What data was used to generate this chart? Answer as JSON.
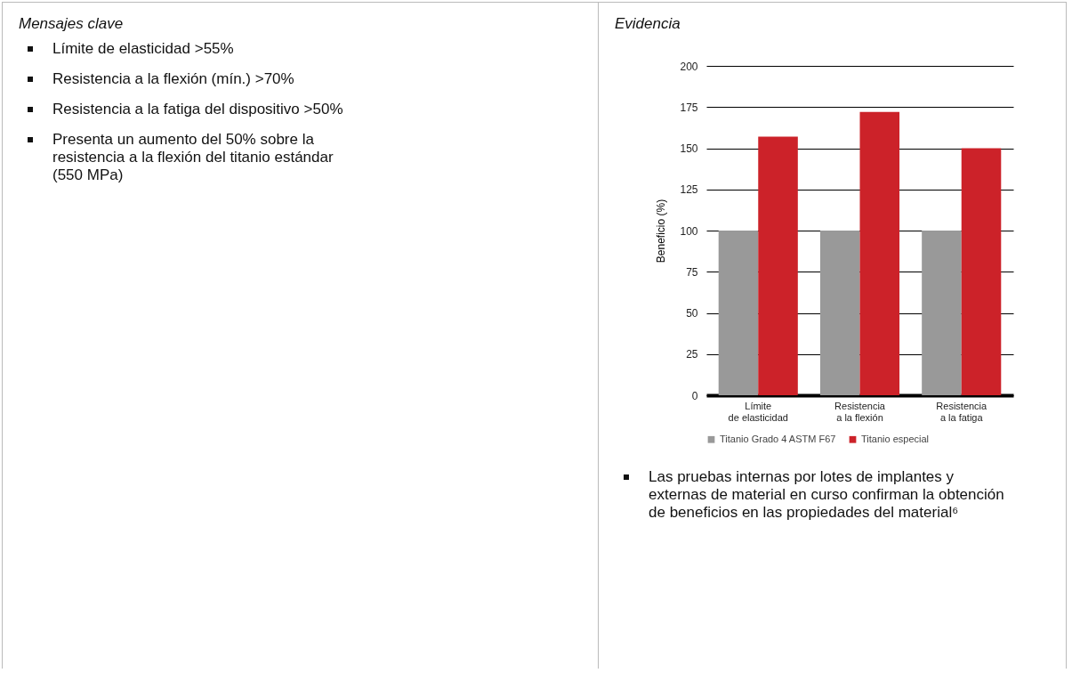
{
  "chart_data": [
    {
      "type": "other",
      "title": "Mensajes clave",
      "annotations": [
        "Límite de elasticidad >55%",
        "Resistencia a la flexión (mín.) >70%",
        "Resistencia a la fatiga del dispositivo >50%",
        "Presenta un aumento del 50% sobre la resistencia a la flexión del titanio estándar (550 MPa)"
      ]
    },
    {
      "type": "bar",
      "title": "Evidencia",
      "ylabel": "Beneficio (%)",
      "categories": [
        "Límite de elasticidad",
        "Resistencia a la flexión",
        "Resistencia a la fatiga"
      ],
      "series": [
        {
          "name": "Titanio Grado 4 ASTM F67",
          "color": "#999999",
          "values": [
            100,
            100,
            100
          ]
        },
        {
          "name": "Titanio especial",
          "color": "#cc2229",
          "values": [
            157,
            172,
            150
          ]
        }
      ],
      "ylim": [
        0,
        200
      ],
      "yticks": [
        0,
        25,
        50,
        75,
        100,
        125,
        150,
        175,
        200
      ],
      "grid": "y",
      "legend": "bottom",
      "annotations": [
        "Las pruebas internas por lotes de implantes y externas de material en curso confirman la obtención de beneficios en las propiedades del material⁶"
      ]
    }
  ]
}
